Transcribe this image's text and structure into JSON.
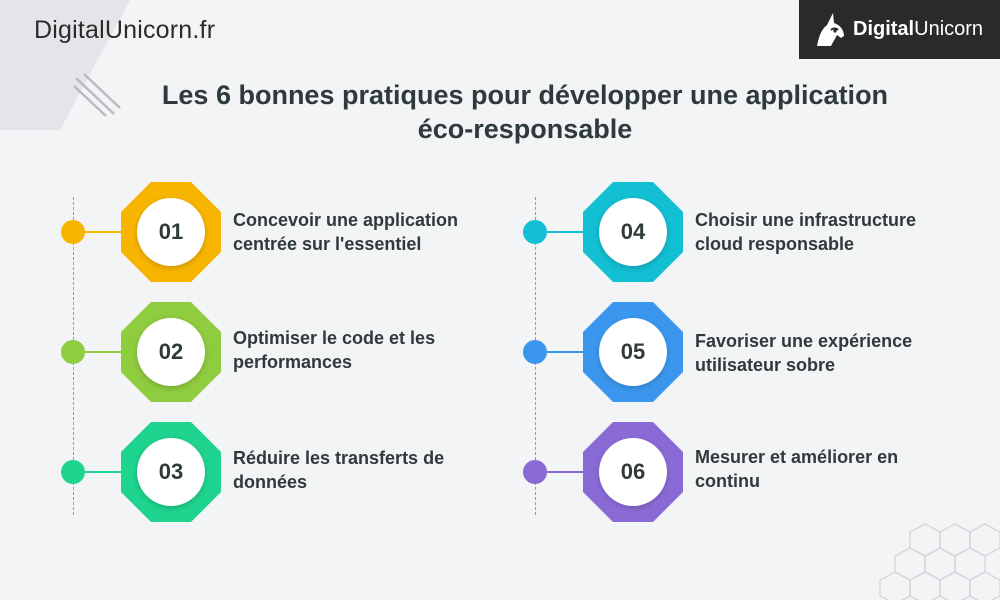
{
  "site_name": "DigitalUnicorn.fr",
  "logo": {
    "bold": "Digital",
    "regular": "Unicorn"
  },
  "title_line1": "Les 6 bonnes pratiques pour développer une application",
  "title_line2": "éco-responsable",
  "items": [
    {
      "number": "01",
      "line1": "Concevoir une application",
      "line2": "centrée sur l'essentiel",
      "color": "#f7b500"
    },
    {
      "number": "02",
      "line1": "Optimiser le code et les",
      "line2": "performances",
      "color": "#8fcc3f"
    },
    {
      "number": "03",
      "line1": "Réduire les transferts de",
      "line2": "données",
      "color": "#1ed48e"
    },
    {
      "number": "04",
      "line1": "Choisir une infrastructure",
      "line2": "cloud responsable",
      "color": "#12bfd3"
    },
    {
      "number": "05",
      "line1": "Favoriser une expérience",
      "line2": "utilisateur sobre",
      "color": "#3b97ee"
    },
    {
      "number": "06",
      "line1": "Mesurer et améliorer en",
      "line2": "continu",
      "color": "#8a6bd6"
    }
  ],
  "icons": {
    "logo_mark": "unicorn-head-icon"
  }
}
